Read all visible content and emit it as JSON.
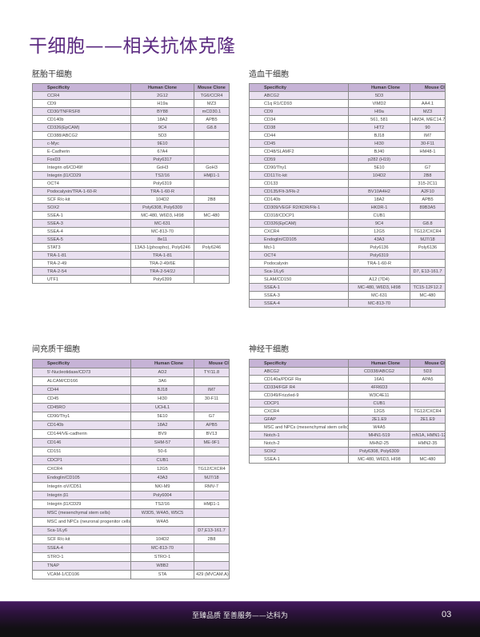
{
  "title": "干细胞——相关抗体克隆",
  "columns": [
    "Specificity",
    "Human Clone",
    "Mouse Clone"
  ],
  "sections": [
    {
      "heading": "胚胎干细胞",
      "rows": [
        [
          "CCR4",
          "2G12",
          "TG6/CCR4"
        ],
        [
          "CD9",
          "H19a",
          "MZ3"
        ],
        [
          "CD30/TNFRSF8",
          "BY88",
          "mCD30.1"
        ],
        [
          "CD140b",
          "18A2",
          "APB5"
        ],
        [
          "CD326(EpCAM)",
          "9C4",
          "G8.8"
        ],
        [
          "CD388/ABCG2",
          "5D3",
          ""
        ],
        [
          "c-Myc",
          "9E10",
          ""
        ],
        [
          "E-Cadherin",
          "67A4",
          ""
        ],
        [
          "FoxD3",
          "Poly6317",
          ""
        ],
        [
          "Integrin α6/CD49f",
          "GoH3",
          "GoH3"
        ],
        [
          "Integrin β1/CD29",
          "TS2/16",
          "HMβ1-1"
        ],
        [
          "OCT4",
          "Poly6319",
          ""
        ],
        [
          "Podocalyxin/TRA-1-60-R",
          "TRA-1-60-R",
          ""
        ],
        [
          "SCF R/c-kit",
          "104D2",
          "2B8"
        ],
        [
          "SOX2",
          "Poly6308, Poly6309",
          ""
        ],
        [
          "SSEA-1",
          "MC-480, W6D3, HI98",
          "MC-480"
        ],
        [
          "SSEA-3",
          "MC-631",
          ""
        ],
        [
          "SSEA-4",
          "MC-813-70",
          ""
        ],
        [
          "SSEA-5",
          "8e11",
          ""
        ],
        [
          "STAT3",
          "13A3-1(phospho), Poly6246",
          "Poly6246"
        ],
        [
          "TRA-1-81",
          "TRA-1-81",
          ""
        ],
        [
          "TRA-2-49",
          "TRA-2-49/6E",
          ""
        ],
        [
          "TRA-2-54",
          "TRA-2-54/2J",
          ""
        ],
        [
          "UTF1",
          "Poly6399",
          ""
        ]
      ]
    },
    {
      "heading": "造血干细胞",
      "rows": [
        [
          "ABCG2",
          "5D3",
          ""
        ],
        [
          "C1q R1/CD93",
          "VIMD2",
          "AA4.1"
        ],
        [
          "CD9",
          "HI9a",
          "MZ3"
        ],
        [
          "CD34",
          "561, 581",
          "HM34, MEC14.7"
        ],
        [
          "CD38",
          "HIT2",
          "90"
        ],
        [
          "CD44",
          "BJ18",
          "IM7"
        ],
        [
          "CD45",
          "HI30",
          "30-F11"
        ],
        [
          "CD48/SLAMF2",
          "BJ40",
          "HM48-1"
        ],
        [
          "CD59",
          "p282 (H19)",
          ""
        ],
        [
          "CD90/Thy1",
          "5E10",
          "G7"
        ],
        [
          "CD117/c-kit",
          "104D2",
          "2B8"
        ],
        [
          "CD133",
          "",
          "315-2C11"
        ],
        [
          "CD135/Flt-3/Flk-2",
          "BV10A4H2",
          "A2F10"
        ],
        [
          "CD140b",
          "18A2",
          "APB5"
        ],
        [
          "CD309/VEGF R2/KDR/Flk-1",
          "HKDR-1",
          "89B3A5"
        ],
        [
          "CD318/CDCP1",
          "CUB1",
          ""
        ],
        [
          "CD326(EpCAM)",
          "9C4",
          "G8.8"
        ],
        [
          "CXCR4",
          "12G5",
          "TG12/CXCR4"
        ],
        [
          "Endoglin/CD105",
          "43A3",
          "MJ7/18"
        ],
        [
          "Mcl-1",
          "Poly6136",
          "Poly6136"
        ],
        [
          "OCT4",
          "Poly6319",
          ""
        ],
        [
          "Podocalyxin",
          "TRA-1-60-R",
          ""
        ],
        [
          "Sca-1/Ly6",
          "",
          "D7, E13-161.7"
        ],
        [
          "SLAM/CD150",
          "A12 (7D4)",
          ""
        ],
        [
          "SSEA-1",
          "MC-480, W6D3, HI98",
          "TC15-12F12.2"
        ],
        [
          "SSEA-3",
          "MC-631",
          "MC-480"
        ],
        [
          "SSEA-4",
          "MC-813-70",
          ""
        ]
      ]
    },
    {
      "heading": "间充质干细胞",
      "rows": [
        [
          "5'-Nucleotidase/CD73",
          "AD2",
          "TY/11.8"
        ],
        [
          "ALCAM/CD166",
          "3A6",
          ""
        ],
        [
          "CD44",
          "BJ18",
          "IM7"
        ],
        [
          "CD45",
          "HI30",
          "30-F11"
        ],
        [
          "CD45RO",
          "UCHL1",
          ""
        ],
        [
          "CD90/Thy1",
          "5E10",
          "G7"
        ],
        [
          "CD140b",
          "18A2",
          "APB5"
        ],
        [
          "CD144/VE-cadherin",
          "BV9",
          "BV13"
        ],
        [
          "CD146",
          "SHM-57",
          "ME-9F1"
        ],
        [
          "CD151",
          "50-6",
          ""
        ],
        [
          "CDCP1",
          "CUB1",
          ""
        ],
        [
          "CXCR4",
          "12G5",
          "TG12/CXCR4"
        ],
        [
          "Endoglin/CD105",
          "43A3",
          "MJ7/18"
        ],
        [
          "Integrin αV/CD51",
          "NKI-M9",
          "RMV-7"
        ],
        [
          "Integrin β1",
          "Poly6004",
          ""
        ],
        [
          "Integrin β1/CD29",
          "TS2/16",
          "HMβ1-1"
        ],
        [
          "MSC (mesenchymal stem cells)",
          "W3D5, W4A5, W5C5",
          ""
        ],
        [
          "MSC and NPCs (neuronal progenitor cells)",
          "W4A5",
          ""
        ],
        [
          "Sca-1/Ly6",
          "",
          "D7,E13-161.7"
        ],
        [
          "SCF R/c-kit",
          "104D2",
          "2B8"
        ],
        [
          "SSEA-4",
          "MC-813-70",
          ""
        ],
        [
          "STRO-1",
          "STRO-1",
          ""
        ],
        [
          "TNAP",
          "W8B2",
          ""
        ],
        [
          "VCAM-1/CD106",
          "STA",
          "429 (MVCAM.A)"
        ]
      ]
    },
    {
      "heading": "神经干细胞",
      "rows": [
        [
          "ABCG2",
          "CD338/ABCG2",
          "5D3"
        ],
        [
          "CD140a/PDGF Rα",
          "16A1",
          "APA5"
        ],
        [
          "CD334/FGF R4",
          "4FR6D3",
          ""
        ],
        [
          "CD349/Frizzled-9",
          "W3C4E11",
          ""
        ],
        [
          "CDCP1",
          "CUB1",
          ""
        ],
        [
          "CXCR4",
          "12G5",
          "TG12/CXCR4"
        ],
        [
          "GFAP",
          "2E1.E9",
          "2E1.E9"
        ],
        [
          "MSC and NPCs (mesenchymal stem cells)",
          "W4A5",
          ""
        ],
        [
          "Notch-1",
          "MHN1-519",
          "mN1A, HMN1-12"
        ],
        [
          "Notch-2",
          "MHN2-25",
          "HMN2-35"
        ],
        [
          "SOX2",
          "Poly6308, Poly6309",
          ""
        ],
        [
          "SSEA-1",
          "MC-480, W6D3, HI98",
          "MC-480"
        ]
      ]
    }
  ],
  "footer": {
    "slogan": "至臻品质 至善服务——达科为",
    "page": "03"
  },
  "colors": {
    "title": "#5b2a80",
    "header_row": "#c6b3d6",
    "stripe": "#e9e0f0",
    "footer": "#2a1238"
  }
}
